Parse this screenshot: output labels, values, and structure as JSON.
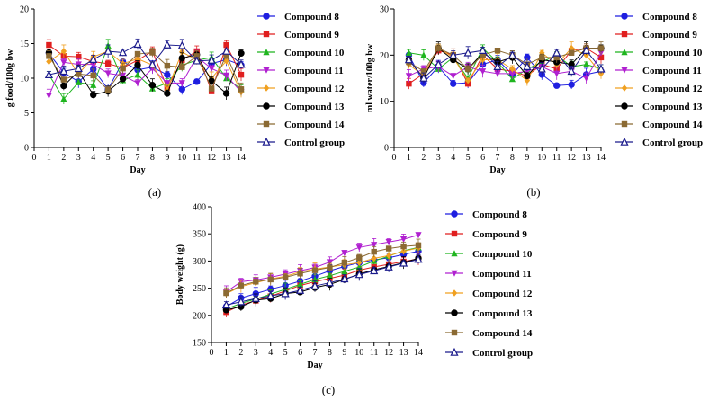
{
  "chart_data": [
    {
      "type": "line",
      "panel_label": "(a)",
      "xlabel": "Day",
      "ylabel": "g food/100g bw",
      "xlim": [
        0,
        14
      ],
      "ylim": [
        0,
        20
      ],
      "x_ticks": [
        0,
        1,
        2,
        3,
        4,
        5,
        6,
        7,
        8,
        9,
        10,
        11,
        12,
        13,
        14
      ],
      "y_ticks": [
        0,
        5,
        10,
        15,
        20
      ],
      "x": [
        1,
        2,
        3,
        4,
        5,
        6,
        7,
        8,
        9,
        10,
        11,
        12,
        13,
        14
      ],
      "series": [
        {
          "name": "Compound 8",
          "color": "#1f1fe0",
          "marker": "circle",
          "values": [
            13.6,
            10.8,
            9.5,
            11.3,
            8.4,
            12.4,
            11.2,
            11.6,
            10.5,
            8.4,
            9.5,
            12.1,
            12.7,
            11.9
          ]
        },
        {
          "name": "Compound 9",
          "color": "#e01f1f",
          "marker": "square",
          "values": [
            14.8,
            13.2,
            13.1,
            12.4,
            12.1,
            11.5,
            12.6,
            13.9,
            8.6,
            12.6,
            13.9,
            8.1,
            14.8,
            10.5
          ]
        },
        {
          "name": "Compound 10",
          "color": "#1fb51f",
          "marker": "triangle-up",
          "values": [
            10.5,
            7.0,
            9.4,
            9.0,
            14.7,
            9.7,
            10.5,
            8.5,
            9.3,
            11.9,
            12.6,
            13.0,
            10.0,
            8.4
          ]
        },
        {
          "name": "Compound 11",
          "color": "#b020d0",
          "marker": "triangle-down",
          "values": [
            7.5,
            12.3,
            12.0,
            12.0,
            10.7,
            10.4,
            9.3,
            11.4,
            9.3,
            9.3,
            13.1,
            11.4,
            10.4,
            8.0
          ]
        },
        {
          "name": "Compound 12",
          "color": "#f0a020",
          "marker": "diamond",
          "values": [
            12.4,
            13.9,
            10.6,
            13.1,
            13.9,
            12.1,
            12.8,
            11.9,
            8.3,
            13.8,
            12.6,
            10.0,
            12.5,
            8.0
          ]
        },
        {
          "name": "Compound 13",
          "color": "#000000",
          "marker": "circle",
          "values": [
            13.7,
            8.9,
            11.0,
            7.6,
            8.1,
            9.9,
            11.9,
            9.0,
            7.8,
            12.9,
            13.4,
            9.6,
            7.8,
            13.6
          ]
        },
        {
          "name": "Compound 14",
          "color": "#8b6a33",
          "marker": "square",
          "values": [
            13.2,
            9.8,
            10.6,
            10.4,
            8.3,
            11.4,
            13.5,
            13.7,
            11.8,
            11.6,
            13.2,
            8.5,
            13.4,
            8.4
          ]
        },
        {
          "name": "Control group",
          "color": "#1a1a8c",
          "marker": "triangle-up-open",
          "values": [
            10.5,
            11.0,
            11.4,
            12.7,
            13.9,
            13.7,
            14.9,
            12.0,
            14.8,
            14.7,
            12.5,
            12.6,
            13.9,
            12.0
          ]
        }
      ]
    },
    {
      "type": "line",
      "panel_label": "(b)",
      "xlabel": "Day",
      "ylabel": "ml water/100g bw",
      "xlim": [
        0,
        14
      ],
      "ylim": [
        0,
        30
      ],
      "x_ticks": [
        0,
        1,
        2,
        3,
        4,
        5,
        6,
        7,
        8,
        9,
        10,
        11,
        12,
        13,
        14
      ],
      "y_ticks": [
        0,
        10,
        20,
        30
      ],
      "x": [
        1,
        2,
        3,
        4,
        5,
        6,
        7,
        8,
        9,
        10,
        11,
        12,
        13,
        14
      ],
      "series": [
        {
          "name": "Compound 8",
          "color": "#1f1fe0",
          "marker": "circle",
          "values": [
            20.0,
            14.0,
            17.5,
            13.8,
            14.0,
            18.0,
            19.0,
            15.8,
            19.5,
            15.8,
            13.4,
            13.6,
            15.8,
            16.5
          ]
        },
        {
          "name": "Compound 9",
          "color": "#e01f1f",
          "marker": "square",
          "values": [
            13.8,
            16.0,
            21.0,
            20.0,
            13.8,
            20.0,
            17.0,
            16.5,
            15.5,
            18.0,
            17.0,
            21.0,
            21.5,
            19.5
          ]
        },
        {
          "name": "Compound 10",
          "color": "#1fb51f",
          "marker": "triangle-up",
          "values": [
            20.5,
            20.0,
            17.0,
            19.5,
            15.0,
            21.5,
            18.5,
            14.8,
            17.0,
            18.5,
            20.0,
            17.5,
            18.0,
            17.0
          ]
        },
        {
          "name": "Compound 11",
          "color": "#b020d0",
          "marker": "triangle-down",
          "values": [
            15.5,
            17.0,
            17.5,
            15.5,
            17.5,
            16.5,
            16.0,
            16.0,
            16.5,
            17.5,
            16.0,
            16.5,
            15.0,
            20.5
          ]
        },
        {
          "name": "Compound 12",
          "color": "#f0a020",
          "marker": "diamond",
          "values": [
            18.0,
            15.5,
            21.5,
            19.5,
            14.5,
            19.0,
            19.0,
            17.0,
            14.5,
            20.5,
            18.0,
            21.5,
            20.0,
            16.0
          ]
        },
        {
          "name": "Compound 13",
          "color": "#000000",
          "marker": "circle",
          "values": [
            19.0,
            15.0,
            21.5,
            19.0,
            17.0,
            20.5,
            18.5,
            19.5,
            15.5,
            19.0,
            18.5,
            18.0,
            21.5,
            21.5
          ]
        },
        {
          "name": "Compound 14",
          "color": "#8b6a33",
          "marker": "square",
          "values": [
            18.5,
            16.5,
            21.5,
            20.0,
            17.0,
            20.0,
            21.0,
            20.0,
            18.0,
            19.5,
            19.5,
            20.5,
            21.5,
            21.5
          ]
        },
        {
          "name": "Control group",
          "color": "#1a1a8c",
          "marker": "triangle-up-open",
          "values": [
            19.0,
            15.0,
            18.0,
            20.0,
            20.5,
            21.0,
            17.5,
            20.0,
            17.5,
            17.0,
            20.5,
            16.5,
            21.0,
            17.0
          ]
        }
      ]
    },
    {
      "type": "line",
      "panel_label": "(c)",
      "xlabel": "Day",
      "ylabel": "Body weight (g)",
      "xlim": [
        0,
        14
      ],
      "ylim": [
        150,
        400
      ],
      "x_ticks": [
        0,
        1,
        2,
        3,
        4,
        5,
        6,
        7,
        8,
        9,
        10,
        11,
        12,
        13,
        14
      ],
      "y_ticks": [
        150,
        200,
        250,
        300,
        350,
        400
      ],
      "x": [
        1,
        2,
        3,
        4,
        5,
        6,
        7,
        8,
        9,
        10,
        11,
        12,
        13,
        14
      ],
      "series": [
        {
          "name": "Compound 8",
          "color": "#1f1fe0",
          "marker": "circle",
          "values": [
            216,
            232,
            240,
            248,
            255,
            263,
            272,
            282,
            290,
            297,
            302,
            306,
            312,
            318
          ]
        },
        {
          "name": "Compound 9",
          "color": "#e01f1f",
          "marker": "square",
          "values": [
            206,
            219,
            227,
            235,
            245,
            255,
            262,
            268,
            274,
            283,
            289,
            294,
            299,
            304
          ]
        },
        {
          "name": "Compound 10",
          "color": "#1fb51f",
          "marker": "triangle-up",
          "values": [
            212,
            222,
            230,
            239,
            248,
            257,
            266,
            273,
            281,
            289,
            300,
            309,
            319,
            325
          ]
        },
        {
          "name": "Compound 11",
          "color": "#b020d0",
          "marker": "triangle-down",
          "values": [
            243,
            262,
            265,
            270,
            276,
            282,
            288,
            298,
            315,
            325,
            330,
            335,
            340,
            348
          ]
        },
        {
          "name": "Compound 12",
          "color": "#f0a020",
          "marker": "diamond",
          "values": [
            240,
            253,
            260,
            267,
            272,
            280,
            285,
            289,
            293,
            297,
            305,
            310,
            318,
            324
          ]
        },
        {
          "name": "Compound 13",
          "color": "#000000",
          "marker": "circle",
          "values": [
            210,
            216,
            228,
            231,
            240,
            243,
            251,
            257,
            266,
            276,
            284,
            290,
            297,
            305
          ]
        },
        {
          "name": "Compound 14",
          "color": "#8b6a33",
          "marker": "square",
          "values": [
            241,
            255,
            262,
            266,
            270,
            277,
            283,
            288,
            297,
            306,
            317,
            323,
            327,
            329
          ]
        },
        {
          "name": "Control group",
          "color": "#1a1a8c",
          "marker": "triangle-up-open",
          "values": [
            219,
            225,
            231,
            236,
            240,
            246,
            254,
            260,
            267,
            275,
            282,
            289,
            296,
            303
          ]
        }
      ]
    }
  ]
}
